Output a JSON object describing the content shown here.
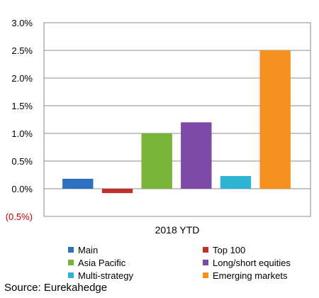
{
  "chart_data": {
    "type": "bar",
    "categories": [
      "2018 YTD"
    ],
    "series": [
      {
        "name": "Main",
        "values": [
          0.18
        ],
        "color": "#2e6fbf"
      },
      {
        "name": "Top 100",
        "values": [
          -0.08
        ],
        "color": "#c0302c"
      },
      {
        "name": "Asia Pacific",
        "values": [
          1.0
        ],
        "color": "#7ab33a"
      },
      {
        "name": "Long/short equities",
        "values": [
          1.2
        ],
        "color": "#7a4aa6"
      },
      {
        "name": "Multi-strategy",
        "values": [
          0.23
        ],
        "color": "#2fb3d3"
      },
      {
        "name": "Emerging markets",
        "values": [
          2.5
        ],
        "color": "#f39020"
      }
    ],
    "ylim": [
      -0.5,
      3.0
    ],
    "y_ticks": [
      {
        "value": 3.0,
        "label": "3.0%"
      },
      {
        "value": 2.5,
        "label": "2.5%"
      },
      {
        "value": 2.0,
        "label": "2.0%"
      },
      {
        "value": 1.5,
        "label": "1.5%"
      },
      {
        "value": 1.0,
        "label": "1.0%"
      },
      {
        "value": 0.5,
        "label": "0.5%"
      },
      {
        "value": 0.0,
        "label": "0.0%"
      },
      {
        "value": -0.5,
        "label": "(0.5%)"
      }
    ],
    "grid": true,
    "legend_position": "bottom",
    "negative_tick_color": "#c00000"
  },
  "source": "Source: Eurekahedge"
}
